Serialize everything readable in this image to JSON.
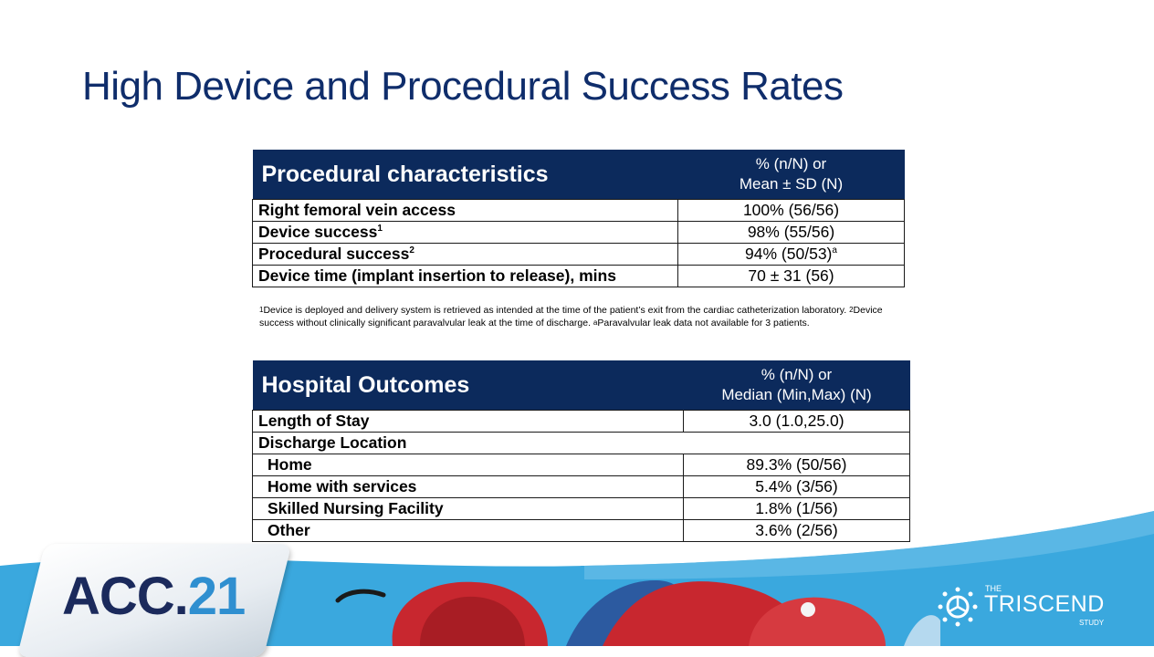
{
  "title": "High Device and Procedural Success Rates",
  "table1": {
    "header_left": "Procedural characteristics",
    "header_right_line1": "% (n/N) or",
    "header_right_line2": "Mean ± SD (N)",
    "rows": [
      {
        "label": "Right femoral vein access",
        "value": "100% (56/56)"
      },
      {
        "label": "Device success",
        "sup": "1",
        "value": "98% (55/56)"
      },
      {
        "label": "Procedural success",
        "sup": "2",
        "value": "94% (50/53)",
        "value_sup": "a"
      },
      {
        "label": "Device time (implant insertion to release), mins",
        "value": "70 ± 31 (56)"
      }
    ]
  },
  "footnote": {
    "sup1": "1",
    "part1": "Device is deployed and delivery system is retrieved as intended at the time of the patient’s exit from the cardiac catheterization laboratory. ",
    "sup2": "2",
    "part2": "Device success without clinically significant paravalvular leak at the time of discharge. ",
    "supa": "a",
    "part3": "Paravalvular leak data not available for 3 patients."
  },
  "table2": {
    "header_left": "Hospital Outcomes",
    "header_right_line1": "% (n/N) or",
    "header_right_line2": "Median (Min,Max) (N)",
    "rows": [
      {
        "label": "Length of Stay",
        "value": "3.0 (1.0,25.0)"
      },
      {
        "label": "Discharge Location",
        "value": ""
      },
      {
        "label": "Home",
        "value": "89.3% (50/56)"
      },
      {
        "label": "Home with services",
        "value": "5.4% (3/56)"
      },
      {
        "label": "Skilled Nursing Facility",
        "value": "1.8% (1/56)"
      },
      {
        "label": "Other",
        "value": "3.6% (2/56)"
      }
    ]
  },
  "branding": {
    "acc_prefix": "ACC.",
    "acc_number": "21",
    "logo_the": "THE",
    "logo_name": "TRISCEND",
    "logo_study": "STUDY"
  },
  "colors": {
    "title": "#0f2d6b",
    "table_header_bg": "#0c2a5c",
    "wave_blue": "#3aa8de",
    "heart_red": "#c8272f"
  },
  "icons": [
    "triscend-valve-icon"
  ]
}
